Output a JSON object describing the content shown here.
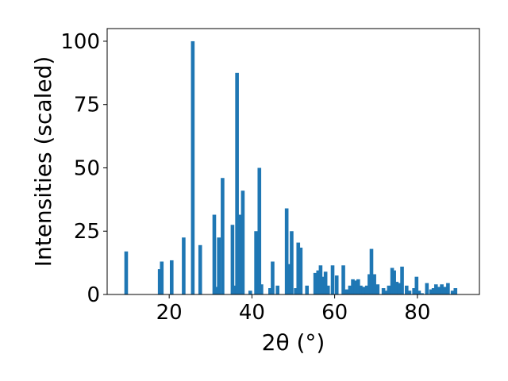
{
  "chart_data": {
    "type": "bar",
    "xlabel": "2θ (°)",
    "ylabel": "Intensities (scaled)",
    "xlim": [
      5,
      95
    ],
    "ylim": [
      0,
      105
    ],
    "x_ticks": [
      20,
      40,
      60,
      80
    ],
    "y_ticks": [
      0,
      25,
      50,
      75,
      100
    ],
    "bar_color": "#1f77b4",
    "grid": false,
    "legend": "none",
    "x": [
      9.6,
      17.7,
      18.2,
      20.6,
      23.5,
      25.7,
      27.5,
      30.9,
      31.6,
      32.0,
      32.9,
      35.3,
      35.8,
      36.4,
      37.2,
      37.8,
      39.6,
      41.0,
      41.8,
      42.3,
      44.4,
      45.0,
      46.2,
      48.4,
      48.9,
      49.6,
      50.6,
      51.2,
      51.8,
      53.3,
      55.3,
      56.0,
      56.6,
      57.2,
      57.8,
      58.4,
      59.5,
      60.5,
      62.1,
      62.9,
      63.7,
      64.4,
      65.0,
      65.7,
      66.3,
      67.0,
      67.8,
      68.4,
      68.9,
      69.6,
      70.4,
      71.8,
      72.5,
      73.1,
      73.9,
      74.4,
      75.0,
      75.6,
      76.3,
      77.4,
      78.1,
      79.2,
      79.8,
      80.4,
      81.1,
      82.3,
      83.3,
      83.9,
      84.5,
      85.2,
      85.9,
      86.6,
      87.4,
      88.5,
      89.2
    ],
    "values": [
      17,
      10,
      13,
      13.5,
      22.5,
      100,
      19.5,
      31.5,
      3,
      22.5,
      46,
      27.5,
      3.5,
      87.5,
      31.5,
      41,
      1.5,
      25,
      50,
      4,
      2.5,
      13,
      3.5,
      34,
      12,
      25,
      2.5,
      20.5,
      18.5,
      3.5,
      8.5,
      9.5,
      11.5,
      7,
      9,
      3.5,
      11.5,
      7.5,
      11.5,
      2,
      3.5,
      6,
      5.5,
      6,
      3.5,
      3,
      3.5,
      8,
      18,
      8,
      4,
      2.5,
      1.5,
      3.5,
      10.5,
      9.5,
      5,
      4.5,
      11,
      3.5,
      1.5,
      2.5,
      7,
      1.5,
      0.5,
      4.5,
      2,
      2.5,
      4,
      3,
      4,
      3,
      4.5,
      1.5,
      2.5
    ]
  }
}
